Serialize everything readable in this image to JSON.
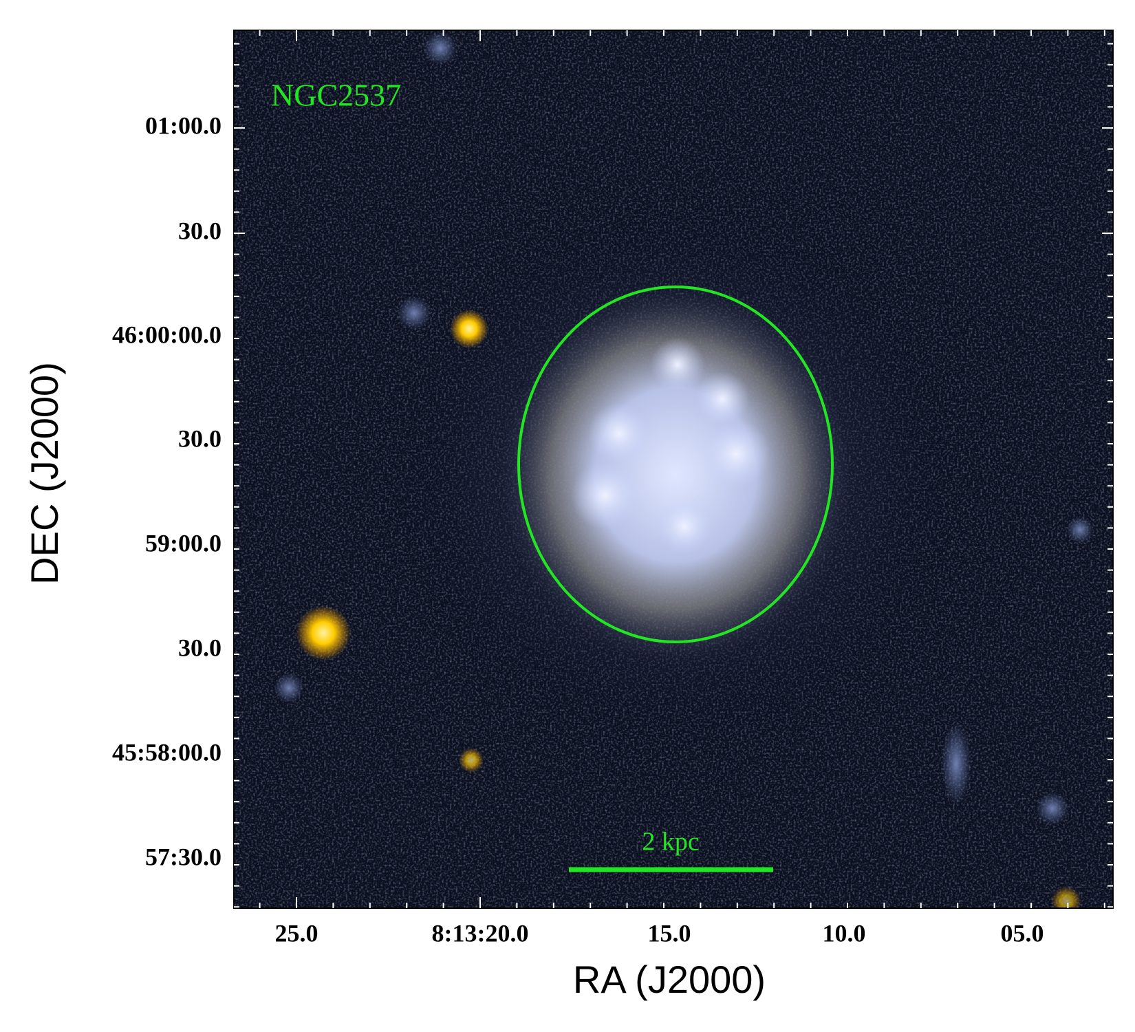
{
  "figure": {
    "object_label": "NGC2537",
    "scale_bar_label": "2 kpc",
    "x_axis": {
      "label": "RA (J2000)",
      "ticks": [
        "25.0",
        "8:13:20.0",
        "15.0",
        "10.0",
        "05.0"
      ]
    },
    "y_axis": {
      "label": "DEC (J2000)",
      "ticks": [
        "01:00.0",
        "30.0",
        "46:00:00.0",
        "30.0",
        "59:00.0",
        "30.0",
        "45:58:00.0",
        "57:30.0"
      ]
    }
  }
}
